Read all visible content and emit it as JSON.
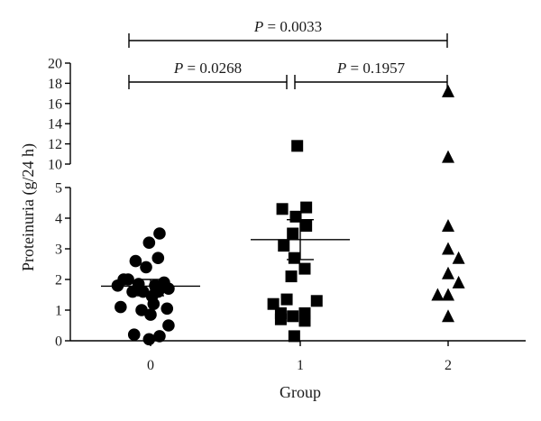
{
  "chart_data": {
    "type": "scatter",
    "ylabel": "Proteinuria (g/24 h)",
    "xlabel": "Group",
    "categories": [
      "0",
      "1",
      "2"
    ],
    "y_axis": {
      "segments": [
        {
          "range": [
            0,
            5
          ],
          "ticks": [
            "0",
            "1",
            "2",
            "3",
            "4",
            "5"
          ]
        },
        {
          "range": [
            10,
            20
          ],
          "ticks": [
            "10",
            "12",
            "14",
            "16",
            "18",
            "20"
          ]
        }
      ],
      "broken": true
    },
    "series": [
      {
        "category": "0",
        "marker": "circle",
        "mean": 1.78,
        "sem_low": 1.47,
        "sem_high": 2.0,
        "points": [
          {
            "dx": -0.22,
            "y": 1.8
          },
          {
            "dx": -0.2,
            "y": 1.1
          },
          {
            "dx": -0.18,
            "y": 2.0
          },
          {
            "dx": -0.15,
            "y": 2.0
          },
          {
            "dx": -0.12,
            "y": 1.6
          },
          {
            "dx": -0.11,
            "y": 0.2
          },
          {
            "dx": -0.1,
            "y": 2.6
          },
          {
            "dx": -0.08,
            "y": 1.85
          },
          {
            "dx": -0.06,
            "y": 1.0
          },
          {
            "dx": -0.05,
            "y": 1.6
          },
          {
            "dx": -0.03,
            "y": 2.4
          },
          {
            "dx": -0.01,
            "y": 3.2
          },
          {
            "dx": -0.01,
            "y": 0.05
          },
          {
            "dx": 0.0,
            "y": 0.85
          },
          {
            "dx": 0.01,
            "y": 1.45
          },
          {
            "dx": 0.02,
            "y": 1.2
          },
          {
            "dx": 0.03,
            "y": 1.8
          },
          {
            "dx": 0.05,
            "y": 1.6
          },
          {
            "dx": 0.05,
            "y": 2.7
          },
          {
            "dx": 0.06,
            "y": 0.15
          },
          {
            "dx": 0.06,
            "y": 3.5
          },
          {
            "dx": 0.08,
            "y": 1.75
          },
          {
            "dx": 0.09,
            "y": 1.9
          },
          {
            "dx": 0.11,
            "y": 1.05
          },
          {
            "dx": 0.12,
            "y": 1.7
          },
          {
            "dx": 0.12,
            "y": 0.5
          }
        ]
      },
      {
        "category": "1",
        "marker": "square",
        "mean": 3.3,
        "sem_low": 2.65,
        "sem_high": 3.95,
        "points": [
          {
            "dx": -0.18,
            "y": 1.2
          },
          {
            "dx": -0.13,
            "y": 0.7
          },
          {
            "dx": -0.13,
            "y": 0.9
          },
          {
            "dx": -0.12,
            "y": 4.3
          },
          {
            "dx": -0.11,
            "y": 3.1
          },
          {
            "dx": -0.09,
            "y": 1.35
          },
          {
            "dx": -0.06,
            "y": 2.1
          },
          {
            "dx": -0.05,
            "y": 0.8
          },
          {
            "dx": -0.05,
            "y": 3.5
          },
          {
            "dx": -0.04,
            "y": 0.15
          },
          {
            "dx": -0.04,
            "y": 2.7
          },
          {
            "dx": -0.03,
            "y": 4.05
          },
          {
            "dx": -0.02,
            "y": 11.8
          },
          {
            "dx": 0.03,
            "y": 0.65
          },
          {
            "dx": 0.03,
            "y": 0.9
          },
          {
            "dx": 0.03,
            "y": 2.35
          },
          {
            "dx": 0.04,
            "y": 3.75
          },
          {
            "dx": 0.04,
            "y": 4.35
          },
          {
            "dx": 0.11,
            "y": 1.3
          }
        ]
      },
      {
        "category": "2",
        "marker": "triangle",
        "points": [
          {
            "dx": -0.07,
            "y": 1.5
          },
          {
            "dx": 0.0,
            "y": 0.8
          },
          {
            "dx": 0.0,
            "y": 1.5
          },
          {
            "dx": 0.0,
            "y": 2.2
          },
          {
            "dx": 0.0,
            "y": 3.0
          },
          {
            "dx": 0.0,
            "y": 3.75
          },
          {
            "dx": 0.0,
            "y": 10.7
          },
          {
            "dx": 0.0,
            "y": 17.2
          },
          {
            "dx": 0.07,
            "y": 1.9
          },
          {
            "dx": 0.07,
            "y": 2.7
          }
        ]
      }
    ],
    "annotations": [
      {
        "from": "0",
        "to": "2",
        "label_prefix": "P",
        "label_eq": " = 0.0033",
        "level": "top"
      },
      {
        "from": "0",
        "to": "1",
        "label_prefix": "P",
        "label_eq": " = 0.0268",
        "level": "lower"
      },
      {
        "from": "1",
        "to": "2",
        "label_prefix": "P",
        "label_eq": " = 0.1957",
        "level": "lower"
      }
    ]
  }
}
